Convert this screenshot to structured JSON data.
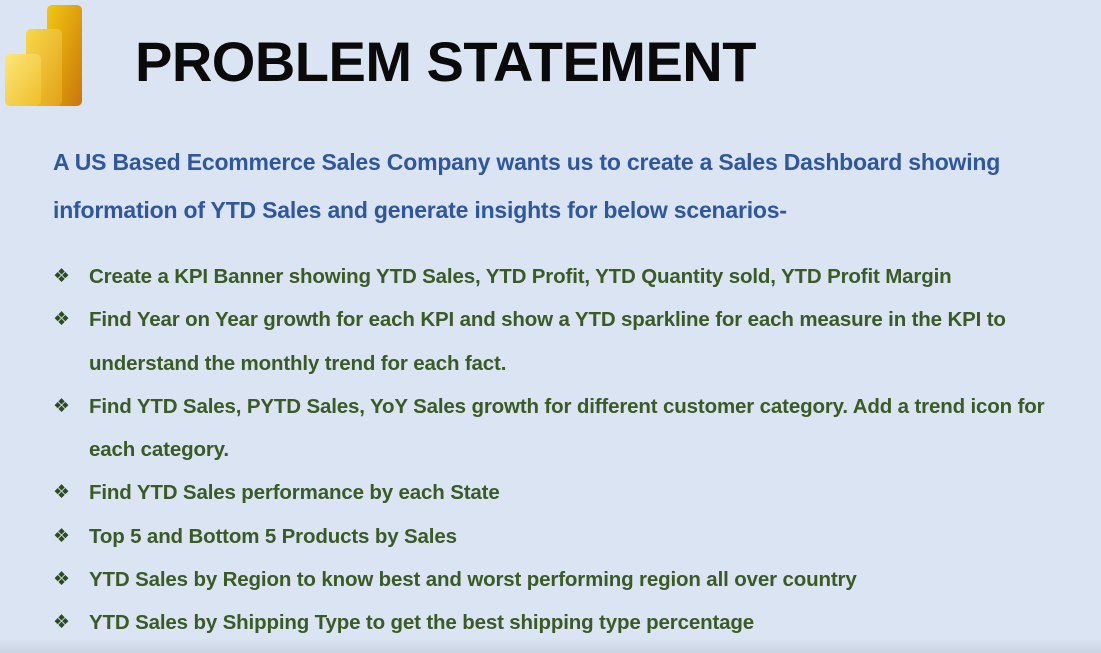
{
  "header": {
    "logo_icon": "power-bi-logo-icon",
    "title": "PROBLEM STATEMENT"
  },
  "intro": {
    "text": "A US Based Ecommerce Sales Company wants us to create a Sales Dashboard showing information of YTD Sales and generate insights for below scenarios-"
  },
  "bullets": {
    "icon": "diamond-bullet-icon",
    "glyph": "❖",
    "items": [
      "Create a KPI Banner showing YTD Sales, YTD Profit, YTD Quantity sold, YTD Profit Margin",
      "Find Year on Year growth for each KPI and show a YTD sparkline for each measure in the KPI to understand the monthly trend for each fact.",
      "Find YTD Sales, PYTD Sales, YoY Sales growth for different customer category. Add a trend icon for each category.",
      "Find YTD Sales performance by each State",
      "Top 5 and Bottom 5 Products by Sales",
      "YTD Sales by Region to know best and worst performing region all over country",
      "YTD Sales by Shipping Type to get the best shipping type percentage"
    ]
  },
  "colors": {
    "background": "#dae4f2",
    "title": "#0a0a0a",
    "intro": "#2f56a0",
    "bullet_text": "#3a5a26"
  }
}
